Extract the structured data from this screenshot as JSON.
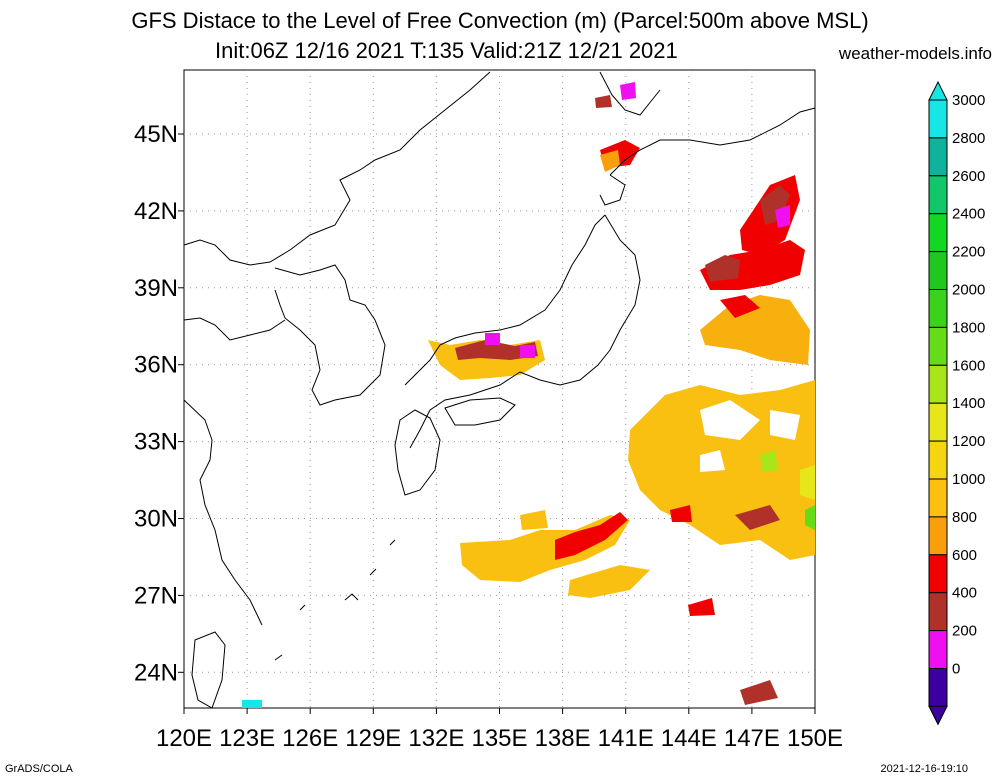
{
  "title_line1": "GFS Distace to the Level of Free Convection (m) (Parcel:500m above MSL)",
  "title_line2": "Init:06Z 12/16 2021 T:135 Valid:21Z 12/21 2021",
  "site": "weather-models.info",
  "footer_left": "GrADS/COLA",
  "footer_right": "2021-12-16-19:10",
  "map": {
    "lon_labels": [
      "120E",
      "123E",
      "126E",
      "129E",
      "132E",
      "135E",
      "138E",
      "141E",
      "144E",
      "147E",
      "150E"
    ],
    "lat_labels": [
      "45N",
      "42N",
      "39N",
      "36N",
      "33N",
      "30N",
      "27N",
      "24N"
    ]
  },
  "colorbar": {
    "labels": [
      "3000",
      "2800",
      "2600",
      "2400",
      "2200",
      "2000",
      "1800",
      "1600",
      "1400",
      "1200",
      "1000",
      "800",
      "600",
      "400",
      "200",
      "0"
    ],
    "colors": [
      "#17e6e6",
      "#0fb39c",
      "#12c76a",
      "#12d824",
      "#1ec81e",
      "#3ad21a",
      "#66dc18",
      "#a8e61a",
      "#e6e619",
      "#f5d50f",
      "#fac10f",
      "#f99f0b",
      "#f00000",
      "#b0302a",
      "#f00ff0",
      "#3c00a0"
    ]
  }
}
